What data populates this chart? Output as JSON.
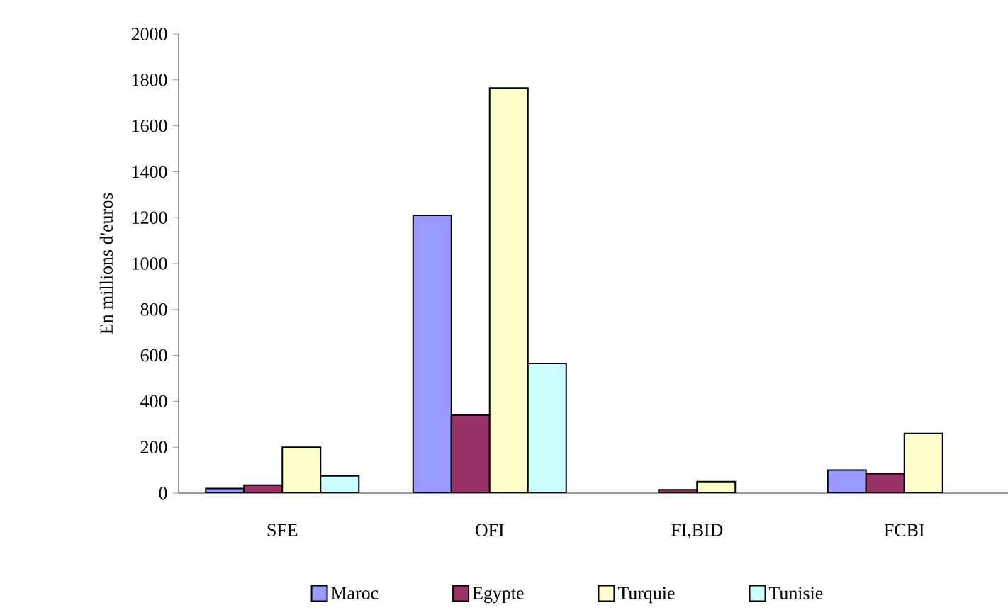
{
  "chart_data": {
    "type": "bar",
    "ylabel": "En millions d'euros",
    "categories": [
      "SFE",
      "OFI",
      "FI,BID",
      "FCBI"
    ],
    "series": [
      {
        "name": "Maroc",
        "color": "#9999ff",
        "values": [
          20,
          1210,
          null,
          100
        ]
      },
      {
        "name": "Egypte",
        "color": "#993366",
        "values": [
          35,
          340,
          15,
          85
        ]
      },
      {
        "name": "Turquie",
        "color": "#ffffcc",
        "values": [
          200,
          1765,
          50,
          260
        ]
      },
      {
        "name": "Tunisie",
        "color": "#ccffff",
        "values": [
          75,
          565,
          null,
          null
        ]
      }
    ],
    "ylim": [
      0,
      2000
    ],
    "yticks": [
      0,
      200,
      400,
      600,
      800,
      1000,
      1200,
      1400,
      1600,
      1800,
      2000
    ],
    "grid": false,
    "legend": "bottom"
  }
}
